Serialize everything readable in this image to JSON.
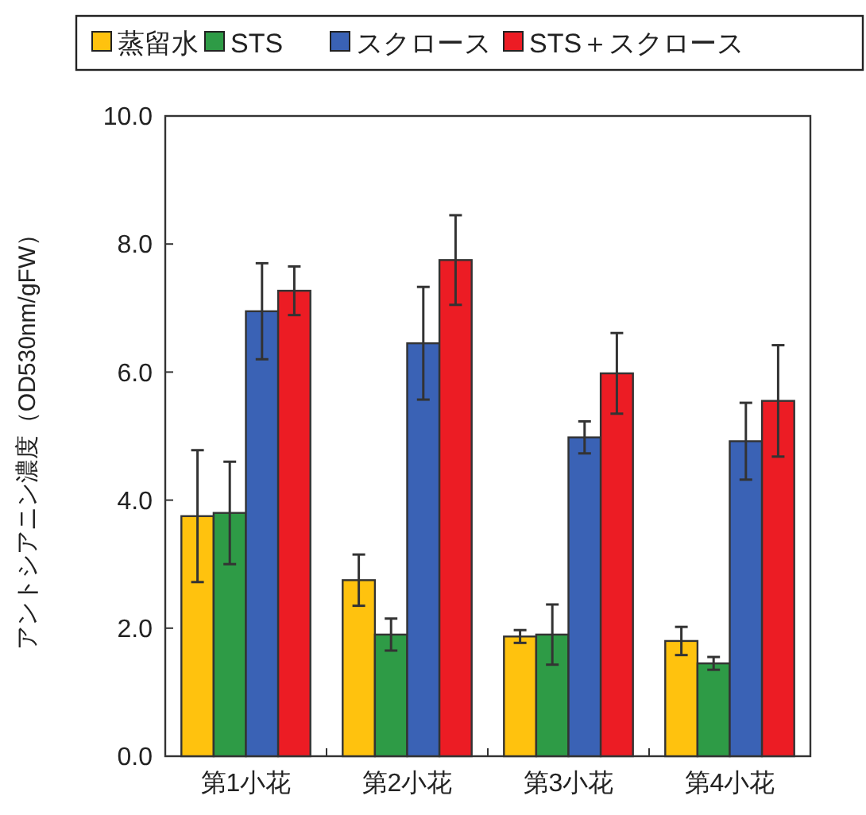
{
  "chart_data": {
    "type": "bar",
    "ylabel": "アントシアニン濃度（OD530nm/gFW）",
    "categories": [
      "第1小花",
      "第2小花",
      "第3小花",
      "第4小花"
    ],
    "series": [
      {
        "name": "蒸留水",
        "color": "#ffc20e",
        "values": [
          3.75,
          2.75,
          1.87,
          1.8
        ],
        "errors": [
          1.03,
          0.4,
          0.1,
          0.22
        ]
      },
      {
        "name": "STS",
        "color": "#2e9b46",
        "values": [
          3.8,
          1.9,
          1.9,
          1.45
        ],
        "errors": [
          0.8,
          0.25,
          0.47,
          0.1
        ]
      },
      {
        "name": "スクロース",
        "color": "#3a62b5",
        "values": [
          6.95,
          6.45,
          4.98,
          4.92
        ],
        "errors": [
          0.75,
          0.88,
          0.25,
          0.6
        ]
      },
      {
        "name": "STS＋スクロース",
        "color": "#ec1c24",
        "values": [
          7.27,
          7.75,
          5.98,
          5.55
        ],
        "errors": [
          0.38,
          0.7,
          0.63,
          0.87
        ]
      }
    ],
    "ylim": [
      0,
      10
    ],
    "yticks": [
      {
        "value": 0,
        "label": "0.0"
      },
      {
        "value": 2,
        "label": "2.0"
      },
      {
        "value": 4,
        "label": "4.0"
      },
      {
        "value": 6,
        "label": "6.0"
      },
      {
        "value": 8,
        "label": "8.0"
      },
      {
        "value": 10,
        "label": "10.0"
      }
    ],
    "grid": false,
    "legend": "top"
  }
}
